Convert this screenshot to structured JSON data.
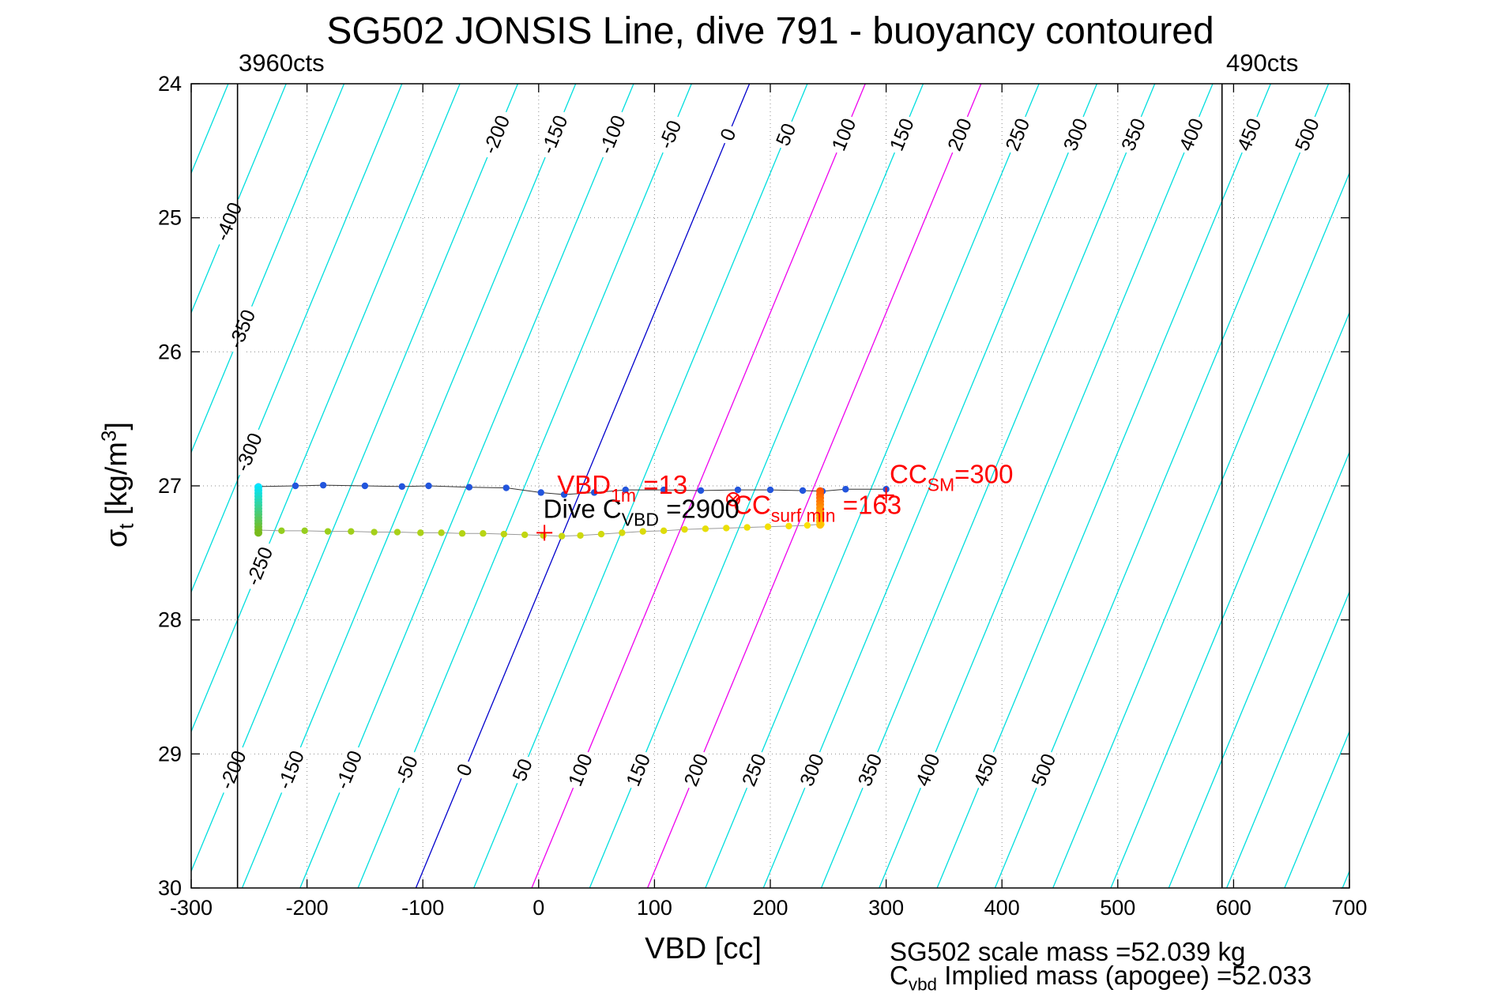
{
  "ylabel": {
    "base": "σ",
    "sub": "t",
    "mid": " [kg/m",
    "sup": "3",
    "end": "]"
  },
  "footer": {
    "line1": "SG502 scale mass =52.039 kg",
    "line2_pre": "C",
    "line2_sub": "vbd",
    "line2_post": " Implied mass (apogee) =52.033"
  },
  "chart_data": {
    "type": "scatter",
    "title": "SG502 JONSIS Line, dive 791 - buoyancy contoured",
    "x_axis": {
      "label": "VBD [cc]",
      "min": -300,
      "max": 700,
      "ticks": [
        -300,
        -200,
        -100,
        0,
        100,
        200,
        300,
        400,
        500,
        600,
        700
      ]
    },
    "y_axis": {
      "label": "sigma_t [kg/m^3]",
      "min": 24,
      "max": 30,
      "ticks": [
        24,
        25,
        26,
        27,
        28,
        29,
        30
      ],
      "inverted": true,
      "grid": true
    },
    "contours": {
      "description": "buoyancy contours [cc]: value = VBD - 182 + 48*(sigma_t - 24)",
      "vbd_intercept_at_sigma24": 182,
      "dvbd_dsigma": -48,
      "min": -450,
      "max": 800,
      "step": 50,
      "color_default": "#00dede",
      "color_zero": "#0000cc",
      "color_highlight": "#ee00ee",
      "highlight_values": [
        100,
        200
      ],
      "top_labels": [
        -200,
        -150,
        -100,
        -50,
        0,
        50,
        100,
        150,
        200,
        250,
        300,
        350,
        400,
        450,
        500
      ],
      "top_label_sigma": 24.38,
      "bottom_labels": [
        -200,
        -150,
        -100,
        -50,
        0,
        50,
        100,
        150,
        200,
        250,
        300,
        350,
        400,
        450,
        500
      ],
      "bottom_label_sigma": 29.12,
      "left_labels": [
        {
          "v": -400,
          "sigma": 25.03
        },
        {
          "v": -350,
          "sigma": 25.83
        },
        {
          "v": -300,
          "sigma": 26.75
        },
        {
          "v": -250,
          "sigma": 27.6
        }
      ]
    },
    "ref_lines": [
      {
        "vbd": -260,
        "label": "3960cts"
      },
      {
        "vbd": 590,
        "label": "490cts"
      }
    ],
    "series": [
      {
        "name": "surface-track",
        "line_color": "#333333",
        "marker_color": "#2255dd",
        "marker_r": 4.2,
        "points": [
          [
            -242,
            27.005
          ],
          [
            -210,
            27.0
          ],
          [
            -186,
            26.995
          ],
          [
            -150,
            27.0
          ],
          [
            -118,
            27.005
          ],
          [
            -95,
            27.0
          ],
          [
            -60,
            27.01
          ],
          [
            -28,
            27.015
          ],
          [
            2,
            27.05
          ],
          [
            22,
            27.065
          ],
          [
            48,
            27.05
          ],
          [
            75,
            27.03
          ],
          [
            108,
            27.03
          ],
          [
            140,
            27.035
          ],
          [
            172,
            27.03
          ],
          [
            200,
            27.03
          ],
          [
            228,
            27.035
          ],
          [
            245,
            27.04
          ],
          [
            265,
            27.025
          ],
          [
            300,
            27.025
          ]
        ]
      },
      {
        "name": "climb-track",
        "line_color": "#9a9a9a",
        "marker_r": 4.2,
        "gradient": [
          "#8fcc20",
          "#ffe300"
        ],
        "points": [
          [
            -242,
            27.33
          ],
          [
            -222,
            27.335
          ],
          [
            -202,
            27.335
          ],
          [
            -182,
            27.34
          ],
          [
            -162,
            27.34
          ],
          [
            -142,
            27.345
          ],
          [
            -122,
            27.345
          ],
          [
            -102,
            27.35
          ],
          [
            -84,
            27.35
          ],
          [
            -66,
            27.355
          ],
          [
            -48,
            27.355
          ],
          [
            -30,
            27.36
          ],
          [
            -12,
            27.365
          ],
          [
            4,
            27.37
          ],
          [
            20,
            27.375
          ],
          [
            36,
            27.37
          ],
          [
            54,
            27.36
          ],
          [
            72,
            27.35
          ],
          [
            90,
            27.34
          ],
          [
            108,
            27.335
          ],
          [
            126,
            27.325
          ],
          [
            144,
            27.32
          ],
          [
            162,
            27.315
          ],
          [
            180,
            27.31
          ],
          [
            198,
            27.305
          ],
          [
            216,
            27.3
          ],
          [
            232,
            27.295
          ],
          [
            244,
            27.285
          ]
        ]
      },
      {
        "name": "apogee-cluster",
        "cluster": true,
        "x": -242,
        "sigma_from": 27.01,
        "sigma_to": 27.35,
        "n": 16,
        "marker_r": 5,
        "gradient": [
          "#00e6ff",
          "#78bb1c"
        ]
      },
      {
        "name": "surf-min-cluster",
        "cluster": true,
        "x": 243,
        "sigma_from": 27.04,
        "sigma_to": 27.29,
        "n": 11,
        "marker_r": 5,
        "gradient": [
          "#ff5500",
          "#ffc200"
        ]
      }
    ],
    "markers": [
      {
        "x": 5,
        "y": 27.35,
        "shape": "plus",
        "color": "#ff0000",
        "size": 10
      },
      {
        "x": 300,
        "y": 27.07,
        "shape": "plus",
        "color": "#ff0000",
        "size": 10
      },
      {
        "x": 168,
        "y": 27.1,
        "shape": "circle-x",
        "color": "#ff0000",
        "size": 8
      }
    ],
    "annotations": [
      {
        "name": "cc-surf-min",
        "x": 168,
        "y": 27.21,
        "color": "#ff0000",
        "segments": [
          {
            "t": "CC"
          },
          {
            "t": "surf min",
            "sub": true
          },
          {
            "t": " =163"
          }
        ]
      },
      {
        "name": "dive-cvbd",
        "x": 4,
        "y": 27.24,
        "color": "#000000",
        "segments": [
          {
            "t": "Dive C"
          },
          {
            "t": "VBD",
            "sub": true
          },
          {
            "t": " =2900"
          }
        ]
      },
      {
        "name": "vbd-1m",
        "x": 16,
        "y": 27.06,
        "color": "#ff0000",
        "segments": [
          {
            "t": "VBD"
          },
          {
            "t": "1m",
            "sub": true
          },
          {
            "t": " =13"
          }
        ]
      },
      {
        "name": "cc-sm",
        "x": 303,
        "y": 26.98,
        "color": "#ff0000",
        "segments": [
          {
            "t": "CC"
          },
          {
            "t": "SM",
            "sub": true
          },
          {
            "t": "=300"
          }
        ]
      }
    ]
  }
}
